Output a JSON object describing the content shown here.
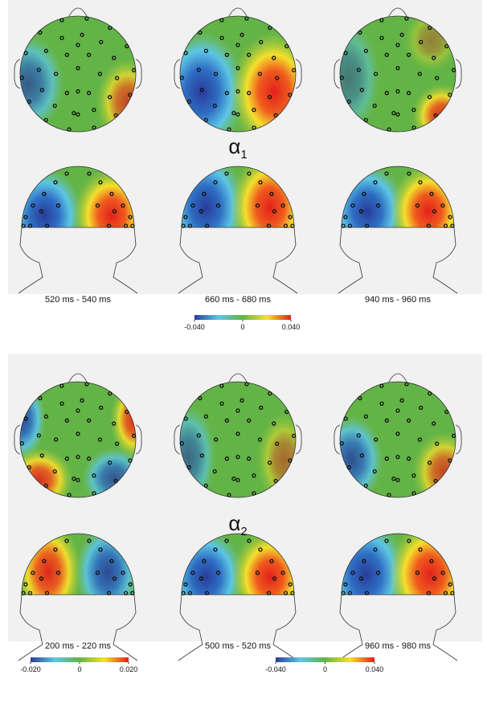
{
  "panels": [
    {
      "label": "α",
      "label_sub": "1",
      "times": [
        "520 ms - 540 ms",
        "660 ms - 680 ms",
        "940 ms - 960 ms"
      ],
      "colorbars": [
        {
          "lim": [
            -0.04,
            0.04
          ],
          "ticks": [
            {
              "value": -0.04,
              "label": "-0.040"
            },
            0,
            {
              "value": 0.04,
              "label": "0.040"
            }
          ]
        }
      ]
    },
    {
      "label": "α",
      "label_sub": "2",
      "times": [
        "200 ms - 220 ms",
        "500 ms - 520 ms",
        "960 ms - 980 ms"
      ],
      "colorbars": [
        {
          "lim": [
            -0.02,
            0.02
          ],
          "ticks": [
            {
              "value": -0.02,
              "label": "-0.020"
            },
            0,
            {
              "value": 0.02,
              "label": "0.020"
            }
          ]
        },
        {
          "lim": [
            -0.04,
            0.04
          ],
          "ticks": [
            {
              "value": -0.04,
              "label": "-0.040"
            },
            0,
            {
              "value": 0.04,
              "label": "0.040"
            }
          ]
        }
      ]
    }
  ]
}
